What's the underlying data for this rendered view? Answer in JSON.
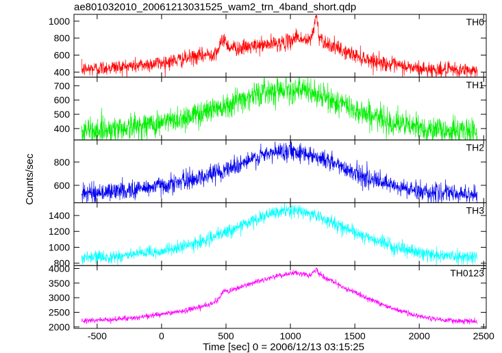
{
  "page": {
    "title": "ae801032010_20061213031525_wam2_trn_4band_short.qdp"
  },
  "chart_data": {
    "type": "line",
    "xlabel": "Time [sec] 0 = 2006/12/13 03:15:25",
    "ylabel": "Counts/sec",
    "xlim": [
      -680,
      2520
    ],
    "x_ticks": [
      -500,
      0,
      500,
      1000,
      1500,
      2000,
      2500
    ],
    "grid": false,
    "panels": [
      {
        "name": "TH0",
        "color": "#ff0000",
        "ylim": [
          340,
          1080
        ],
        "y_ticks": [
          400,
          600,
          800,
          1000
        ],
        "noise": 45,
        "profile_x": [
          -620,
          -400,
          -200,
          0,
          200,
          400,
          450,
          480,
          520,
          600,
          800,
          1000,
          1050,
          1080,
          1150,
          1180,
          1200,
          1220,
          1260,
          1400,
          1600,
          1800,
          2000,
          2200,
          2450
        ],
        "profile_y": [
          430,
          455,
          475,
          510,
          560,
          620,
          680,
          810,
          700,
          680,
          720,
          760,
          830,
          790,
          760,
          900,
          1080,
          840,
          760,
          650,
          550,
          480,
          440,
          420,
          420
        ]
      },
      {
        "name": "TH1",
        "color": "#00ee00",
        "ylim": [
          320,
          760
        ],
        "y_ticks": [
          400,
          500,
          600,
          700
        ],
        "noise": 45,
        "profile_x": [
          -620,
          -400,
          -200,
          0,
          200,
          400,
          600,
          800,
          950,
          1050,
          1200,
          1400,
          1600,
          1800,
          2000,
          2200,
          2450
        ],
        "profile_y": [
          380,
          395,
          415,
          440,
          480,
          540,
          600,
          660,
          680,
          675,
          640,
          570,
          500,
          440,
          405,
          385,
          380
        ]
      },
      {
        "name": "TH2",
        "color": "#0000ee",
        "ylim": [
          450,
          990
        ],
        "y_ticks": [
          600,
          800
        ],
        "noise": 40,
        "profile_x": [
          -620,
          -400,
          -200,
          0,
          200,
          400,
          600,
          800,
          950,
          1050,
          1200,
          1400,
          1600,
          1800,
          2000,
          2200,
          2450
        ],
        "profile_y": [
          530,
          545,
          565,
          600,
          640,
          700,
          780,
          860,
          900,
          895,
          850,
          760,
          660,
          590,
          550,
          530,
          520
        ]
      },
      {
        "name": "TH3",
        "color": "#00ffff",
        "ylim": [
          770,
          1560
        ],
        "y_ticks": [
          800,
          1000,
          1200,
          1400
        ],
        "noise": 40,
        "profile_x": [
          -620,
          -400,
          -200,
          0,
          200,
          400,
          600,
          800,
          950,
          1050,
          1200,
          1400,
          1600,
          1800,
          2000,
          2200,
          2450
        ],
        "profile_y": [
          865,
          880,
          910,
          950,
          1020,
          1120,
          1260,
          1390,
          1460,
          1460,
          1400,
          1260,
          1120,
          1010,
          930,
          890,
          880
        ]
      },
      {
        "name": "TH0123",
        "color": "#ff00ff",
        "ylim": [
          1950,
          4100
        ],
        "y_ticks": [
          2000,
          2500,
          3000,
          3500,
          4000
        ],
        "noise": 45,
        "profile_x": [
          -620,
          -400,
          -200,
          0,
          200,
          400,
          450,
          480,
          520,
          600,
          800,
          1000,
          1050,
          1150,
          1180,
          1200,
          1220,
          1260,
          1400,
          1600,
          1800,
          2000,
          2200,
          2450
        ],
        "profile_y": [
          2210,
          2250,
          2320,
          2430,
          2580,
          2800,
          3000,
          3230,
          3220,
          3340,
          3640,
          3830,
          3840,
          3750,
          3900,
          4000,
          3830,
          3690,
          3380,
          2980,
          2620,
          2360,
          2230,
          2180
        ]
      }
    ]
  }
}
